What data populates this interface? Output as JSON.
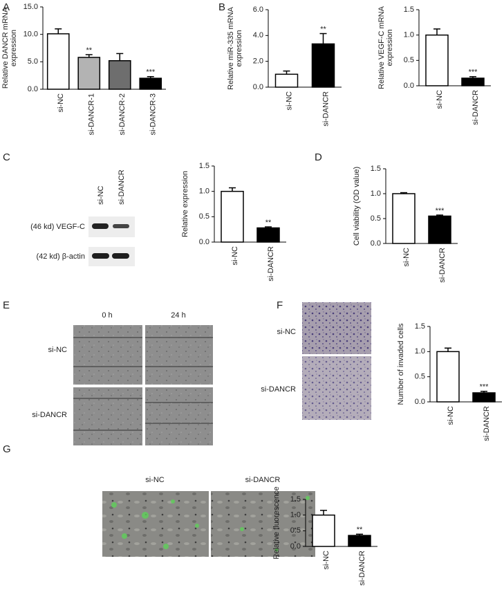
{
  "chart_data": [
    {
      "type": "bar",
      "ylabel": [
        "Relative DANCR mRNA",
        "expression"
      ],
      "categories": [
        "si-NC",
        "si-DANCR-1",
        "si-DANCR-2",
        "si-DANCR-3"
      ],
      "values": [
        10.1,
        5.8,
        5.2,
        2.0
      ],
      "errors": [
        0.9,
        0.5,
        1.3,
        0.3
      ],
      "colors": [
        "#ffffff",
        "#b3b3b3",
        "#6e6e6e",
        "#000000"
      ],
      "significance": [
        null,
        "**",
        null,
        "***"
      ],
      "ylim": [
        0,
        15
      ],
      "yticks": [
        {
          "value": 0,
          "label": "0.0"
        },
        {
          "value": 5,
          "label": "5.0"
        },
        {
          "value": 10,
          "label": "10.0"
        },
        {
          "value": 15,
          "label": "15.0"
        }
      ]
    },
    {
      "type": "bar",
      "ylabel": [
        "Relative miR-335 mRNA",
        "expression"
      ],
      "categories": [
        "si-NC",
        "si-DANCR"
      ],
      "values": [
        1.0,
        3.35
      ],
      "errors": [
        0.25,
        0.8
      ],
      "colors": [
        "#ffffff",
        "#000000"
      ],
      "significance": [
        null,
        "**"
      ],
      "ylim": [
        0,
        6
      ],
      "yticks": [
        {
          "value": 0,
          "label": "0.0"
        },
        {
          "value": 2,
          "label": "2.0"
        },
        {
          "value": 4,
          "label": "4.0"
        },
        {
          "value": 6,
          "label": "6.0"
        }
      ]
    },
    {
      "type": "bar",
      "ylabel": [
        "Relative VEGF-C mRNA",
        "expression"
      ],
      "categories": [
        "si-NC",
        "si-DANCR"
      ],
      "values": [
        1.0,
        0.15
      ],
      "errors": [
        0.12,
        0.03
      ],
      "colors": [
        "#ffffff",
        "#000000"
      ],
      "significance": [
        null,
        "***"
      ],
      "ylim": [
        0,
        1.5
      ],
      "yticks": [
        {
          "value": 0,
          "label": "0.0"
        },
        0.5,
        {
          "value": 1,
          "label": "1.0"
        },
        1.5
      ]
    },
    {
      "type": "bar",
      "ylabel": [
        "Relative expression"
      ],
      "categories": [
        "si-NC",
        "si-DANCR"
      ],
      "values": [
        1.0,
        0.28
      ],
      "errors": [
        0.07,
        0.02
      ],
      "colors": [
        "#ffffff",
        "#000000"
      ],
      "significance": [
        null,
        "**"
      ],
      "ylim": [
        0,
        1.5
      ],
      "yticks": [
        {
          "value": 0,
          "label": "0.0"
        },
        0.5,
        {
          "value": 1,
          "label": "1.0"
        },
        1.5
      ]
    },
    {
      "type": "bar",
      "ylabel": [
        "Cell viability (OD value)"
      ],
      "categories": [
        "si-NC",
        "si-DANCR"
      ],
      "values": [
        1.0,
        0.55
      ],
      "errors": [
        0.02,
        0.02
      ],
      "colors": [
        "#ffffff",
        "#000000"
      ],
      "significance": [
        null,
        "***"
      ],
      "ylim": [
        0,
        1.5
      ],
      "yticks": [
        {
          "value": 0,
          "label": "0.0"
        },
        0.5,
        {
          "value": 1,
          "label": "1.0"
        },
        1.5
      ]
    },
    {
      "type": "bar",
      "ylabel": [
        "Number of invaded cells"
      ],
      "categories": [
        "si-NC",
        "si-DANCR"
      ],
      "values": [
        1.0,
        0.18
      ],
      "errors": [
        0.07,
        0.03
      ],
      "colors": [
        "#ffffff",
        "#000000"
      ],
      "significance": [
        null,
        "***"
      ],
      "ylim": [
        0,
        1.5
      ],
      "yticks": [
        {
          "value": 0,
          "label": "0.0"
        },
        0.5,
        {
          "value": 1,
          "label": "1.0"
        },
        1.5
      ]
    },
    {
      "type": "bar",
      "ylabel": [
        "Relative fluorescence"
      ],
      "categories": [
        "si-NC",
        "si-DANCR"
      ],
      "values": [
        1.0,
        0.35
      ],
      "errors": [
        0.15,
        0.04
      ],
      "colors": [
        "#ffffff",
        "#000000"
      ],
      "significance": [
        null,
        "**"
      ],
      "ylim": [
        0,
        1.5
      ],
      "yticks": [
        {
          "value": 0,
          "label": "0.0"
        },
        0.5,
        {
          "value": 1,
          "label": "1.0"
        },
        1.5
      ]
    }
  ],
  "panel_letters": [
    "A",
    "B",
    "C",
    "D",
    "E",
    "F",
    "G"
  ],
  "blot": {
    "lanes": [
      "si-NC",
      "si-DANCR"
    ],
    "bands": [
      "(46 kd) VEGF-C",
      "(42 kd) β-actin"
    ]
  },
  "wound": {
    "columns": [
      "0 h",
      "24 h"
    ],
    "rows": [
      "si-NC",
      "si-DANCR"
    ]
  },
  "transwell": {
    "rows": [
      "si-NC",
      "si-DANCR"
    ]
  },
  "fluorescence": {
    "columns": [
      "si-NC",
      "si-DANCR"
    ]
  }
}
